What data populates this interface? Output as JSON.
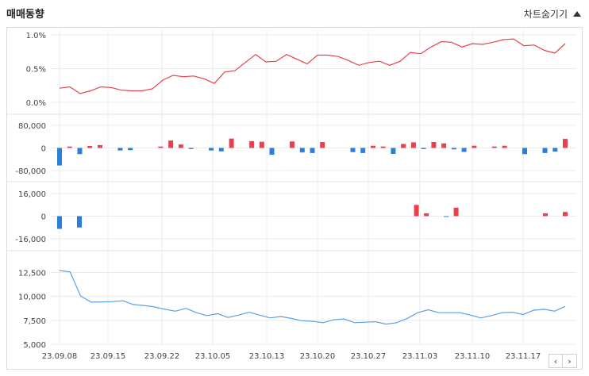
{
  "header": {
    "title": "매매동향",
    "hide_label": "차트숨기기"
  },
  "nav": {
    "prev_icon": "‹",
    "next_icon": "›"
  },
  "colors": {
    "up": "#e8414d",
    "down": "#2c7fd8",
    "price_line": "#e8414d",
    "lower_line": "#5aa0e0",
    "grid": "#ebebeb"
  },
  "chart_data": [
    {
      "type": "line",
      "panel": "top",
      "yticks": [
        "1.0%",
        "0.5%",
        "0.0%"
      ],
      "ylim": [
        0,
        1.0
      ],
      "values": [
        0.21,
        0.23,
        0.13,
        0.17,
        0.23,
        0.22,
        0.18,
        0.17,
        0.17,
        0.2,
        0.33,
        0.4,
        0.38,
        0.39,
        0.35,
        0.28,
        0.45,
        0.47,
        0.59,
        0.71,
        0.6,
        0.61,
        0.71,
        0.64,
        0.57,
        0.7,
        0.7,
        0.68,
        0.62,
        0.55,
        0.59,
        0.61,
        0.55,
        0.61,
        0.74,
        0.72,
        0.82,
        0.9,
        0.89,
        0.82,
        0.87,
        0.86,
        0.89,
        0.93,
        0.94,
        0.84,
        0.85,
        0.77,
        0.73,
        0.87
      ]
    },
    {
      "type": "bar",
      "panel": "mid1",
      "yticks": [
        "80,000",
        "0",
        "-80,000"
      ],
      "ylim": [
        -80000,
        80000
      ],
      "values": [
        -62000,
        5000,
        -22000,
        7000,
        10000,
        0,
        -9000,
        -8000,
        0,
        0,
        5000,
        26000,
        12000,
        -4000,
        0,
        -9000,
        -12000,
        33000,
        0,
        24000,
        22000,
        -24000,
        0,
        23000,
        -16000,
        -18000,
        21000,
        0,
        0,
        -15000,
        -18000,
        8000,
        5000,
        -21000,
        14000,
        20000,
        -4000,
        21000,
        16000,
        -5000,
        -14000,
        8000,
        0,
        5000,
        8000,
        0,
        -22000,
        0,
        -18000,
        -13000,
        32000
      ]
    },
    {
      "type": "bar",
      "panel": "mid2",
      "yticks": [
        "16,000",
        "0",
        "-16,000"
      ],
      "ylim": [
        -16000,
        16000
      ],
      "values": [
        -9000,
        0,
        -8000,
        0,
        0,
        0,
        0,
        0,
        0,
        0,
        0,
        0,
        0,
        0,
        0,
        0,
        0,
        0,
        0,
        0,
        0,
        0,
        0,
        0,
        0,
        0,
        0,
        0,
        0,
        0,
        0,
        0,
        0,
        0,
        0,
        0,
        8000,
        2000,
        0,
        -500,
        6000,
        0,
        0,
        0,
        0,
        0,
        0,
        0,
        0,
        2000,
        0,
        3000
      ]
    },
    {
      "type": "line",
      "panel": "bottom",
      "yticks": [
        "12,500",
        "10,000",
        "7,500",
        "5,000"
      ],
      "ylim": [
        5000,
        13200
      ],
      "values": [
        12700,
        12550,
        10050,
        9400,
        9420,
        9450,
        9550,
        9150,
        9050,
        8900,
        8650,
        8450,
        8750,
        8300,
        8000,
        8200,
        7800,
        8050,
        8350,
        8050,
        7750,
        7900,
        7700,
        7450,
        7400,
        7250,
        7550,
        7650,
        7250,
        7300,
        7350,
        7100,
        7250,
        7700,
        8300,
        8600,
        8300,
        8300,
        8300,
        8050,
        7750,
        8000,
        8300,
        8350,
        8100,
        8550,
        8650,
        8450,
        8950
      ]
    }
  ],
  "xticks": [
    "23.09.08",
    "23.09.15",
    "23.09.22",
    "23.10.05",
    "23.10.13",
    "23.10.20",
    "23.10.27",
    "23.11.03",
    "23.11.10",
    "23.11.17"
  ]
}
